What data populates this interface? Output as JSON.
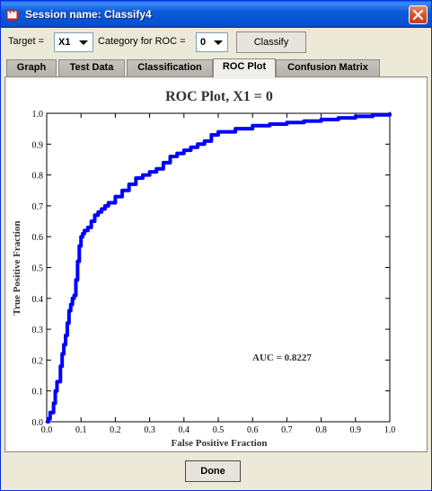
{
  "window": {
    "title": "Session name: Classify4"
  },
  "toolbar": {
    "target_label": "Target =",
    "target_value": "X1",
    "category_label": "Category for ROC =",
    "category_value": "0",
    "classify_label": "Classify"
  },
  "tabs": [
    {
      "label": "Graph",
      "active": false
    },
    {
      "label": "Test Data",
      "active": false
    },
    {
      "label": "Classification",
      "active": false
    },
    {
      "label": "ROC Plot",
      "active": true
    },
    {
      "label": "Confusion Matrix",
      "active": false
    }
  ],
  "footer": {
    "done_label": "Done"
  },
  "colors": {
    "curve": "#0000ff",
    "titlebar": "#0b5ad8",
    "close": "#d6512b"
  },
  "chart_data": {
    "type": "line",
    "title": "ROC Plot, X1 = 0",
    "xlabel": "False Positive Fraction",
    "ylabel": "True Positive Fraction",
    "xlim": [
      0,
      1
    ],
    "ylim": [
      0,
      1
    ],
    "xticks": [
      "0.0",
      "0.1",
      "0.2",
      "0.3",
      "0.4",
      "0.5",
      "0.6",
      "0.7",
      "0.8",
      "0.9",
      "1.0"
    ],
    "yticks": [
      "0.0",
      "0.1",
      "0.2",
      "0.3",
      "0.4",
      "0.5",
      "0.6",
      "0.7",
      "0.8",
      "0.9",
      "1.0"
    ],
    "annotation": "AUC = 0.8227",
    "grid": false,
    "series": [
      {
        "x": [
          0,
          0.005,
          0.01,
          0.02,
          0.025,
          0.03,
          0.04,
          0.045,
          0.05,
          0.055,
          0.06,
          0.065,
          0.07,
          0.075,
          0.08,
          0.085,
          0.09,
          0.095,
          0.1,
          0.105,
          0.11,
          0.12,
          0.13,
          0.14,
          0.15,
          0.16,
          0.17,
          0.18,
          0.2,
          0.22,
          0.24,
          0.26,
          0.28,
          0.3,
          0.32,
          0.34,
          0.36,
          0.38,
          0.4,
          0.42,
          0.44,
          0.46,
          0.48,
          0.5,
          0.55,
          0.6,
          0.65,
          0.7,
          0.75,
          0.8,
          0.85,
          0.9,
          0.95,
          1.0
        ],
        "y": [
          0,
          0.01,
          0.03,
          0.06,
          0.1,
          0.13,
          0.18,
          0.22,
          0.25,
          0.28,
          0.32,
          0.36,
          0.38,
          0.4,
          0.41,
          0.46,
          0.52,
          0.57,
          0.6,
          0.61,
          0.62,
          0.63,
          0.65,
          0.67,
          0.68,
          0.69,
          0.7,
          0.71,
          0.73,
          0.75,
          0.77,
          0.79,
          0.8,
          0.81,
          0.82,
          0.84,
          0.86,
          0.87,
          0.88,
          0.89,
          0.9,
          0.91,
          0.93,
          0.94,
          0.95,
          0.96,
          0.965,
          0.97,
          0.975,
          0.98,
          0.985,
          0.99,
          0.995,
          1.0
        ]
      }
    ]
  }
}
